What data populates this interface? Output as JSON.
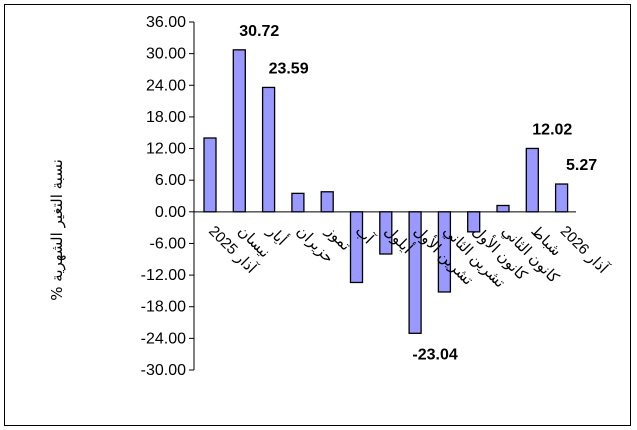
{
  "chart_data": {
    "type": "bar",
    "title": "",
    "xlabel": "",
    "ylabel": "نسبة التغير الشهرية %",
    "ylim": [
      -30,
      36
    ],
    "yticks": [
      "36.00",
      "30.00",
      "24.00",
      "18.00",
      "12.00",
      "6.00",
      "0.00",
      "-6.00",
      "-12.00",
      "-18.00",
      "-24.00",
      "-30.00"
    ],
    "categories": [
      "آذار 2025",
      "نيسان",
      "أيار",
      "حزيران",
      "تموز",
      "آب",
      "أيلول",
      "تشرين الأول",
      "تشرين الثاني",
      "كانون الأول",
      "كانون الثاني",
      "شباط",
      "آذار 2026"
    ],
    "values": [
      14.0,
      30.72,
      23.59,
      3.5,
      3.8,
      -13.4,
      -8.0,
      -23.04,
      -15.2,
      -3.8,
      1.2,
      12.02,
      5.27
    ],
    "data_labels": [
      {
        "index": 1,
        "text": "30.72"
      },
      {
        "index": 2,
        "text": "23.59"
      },
      {
        "index": 7,
        "text": "-23.04"
      },
      {
        "index": 11,
        "text": "12.02"
      },
      {
        "index": 12,
        "text": "5.27"
      }
    ],
    "grid": false,
    "legend": "none",
    "bar_color": "#9999ff",
    "bar_outline": "#000000"
  }
}
